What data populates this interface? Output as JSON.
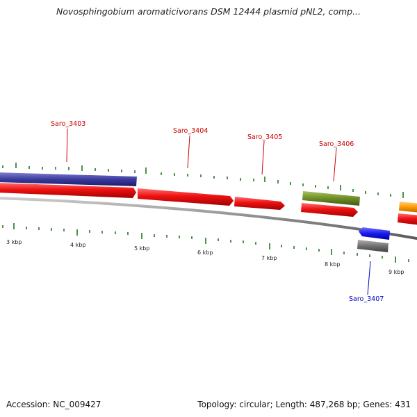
{
  "title": "Novosphingobium aromaticivorans DSM 12444 plasmid pNL2, comp...",
  "footer": {
    "accession": "Accession: NC_009427",
    "summary": "Topology: circular; Length: 487,268 bp; Genes: 431"
  },
  "kbp_labels": [
    "3 kbp",
    "4 kbp",
    "5 kbp",
    "6 kbp",
    "7 kbp",
    "8 kbp",
    "9 kbp"
  ],
  "genes": [
    {
      "id": "Saro_3403",
      "labelled": true,
      "strand": "forward",
      "color": "#3333aa"
    },
    {
      "id": "Saro_3404",
      "labelled": true,
      "strand": "forward",
      "color": "#ee1111"
    },
    {
      "id": "Saro_3405",
      "labelled": true,
      "strand": "forward",
      "color": "#ee1111"
    },
    {
      "id": "Saro_3406",
      "labelled": true,
      "strand": "forward",
      "color": "#6b8e23"
    },
    {
      "id": "Saro_3407",
      "labelled": true,
      "strand": "reverse",
      "color": "#1a1aee"
    }
  ],
  "colors": {
    "cds": "#ee1111",
    "label_forward": "#cc0000",
    "label_reverse": "#0000bb",
    "gc_skew": "#227722",
    "backbone": "#808080"
  }
}
